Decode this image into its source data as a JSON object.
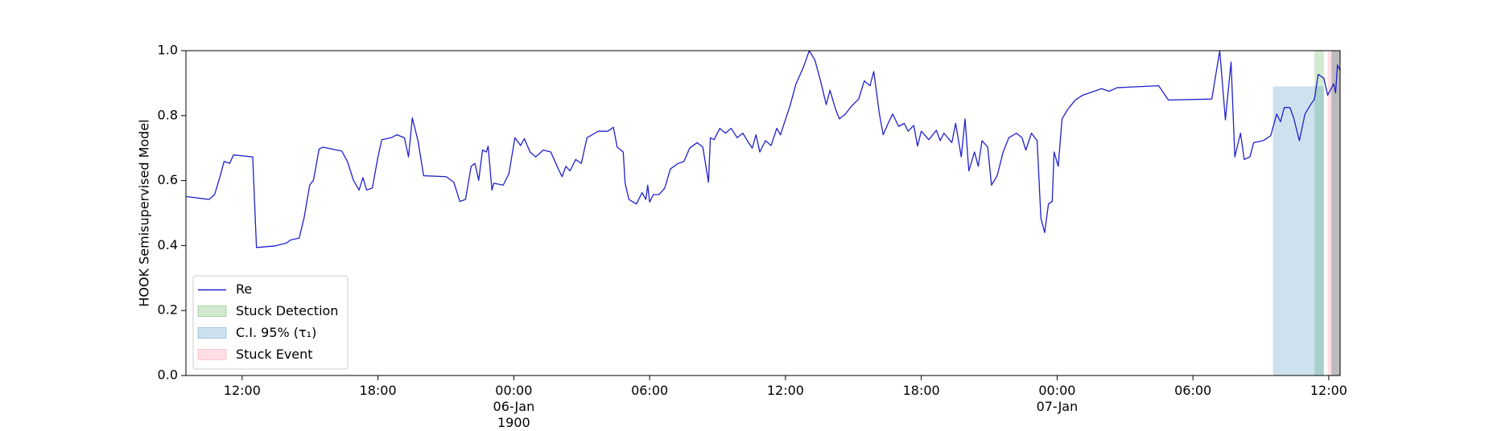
{
  "chart_data": {
    "type": "line",
    "y_label": "HOOK Semisupervised Model",
    "xlim": [
      "1900-01-05 09:31",
      "1900-01-07 12:30"
    ],
    "xticks": [
      {
        "value": "1900-01-05 12:00",
        "label": "12:00"
      },
      {
        "value": "1900-01-05 18:00",
        "label": "18:00"
      },
      {
        "value": "1900-01-06 00:00",
        "label": "00:00\n06-Jan\n1900"
      },
      {
        "value": "1900-01-06 06:00",
        "label": "06:00"
      },
      {
        "value": "1900-01-06 12:00",
        "label": "12:00"
      },
      {
        "value": "1900-01-06 18:00",
        "label": "18:00"
      },
      {
        "value": "1900-01-07 00:00",
        "label": "00:00\n07-Jan"
      },
      {
        "value": "1900-01-07 06:00",
        "label": "06:00"
      },
      {
        "value": "1900-01-07 12:00",
        "label": "12:00"
      }
    ],
    "ylim": [
      0,
      1
    ],
    "yticks": [
      {
        "value": 0,
        "label": "0.0"
      },
      0.2,
      0.4,
      0.6,
      0.8,
      {
        "value": 1,
        "label": "1.0"
      }
    ],
    "legend": "lower left",
    "series": [
      {
        "name": "Re",
        "color": "#2020cc",
        "x": [
          "1900-01-05 09:31",
          "1900-01-05 10:32",
          "1900-01-05 10:47",
          "1900-01-05 11:02",
          "1900-01-05 11:12",
          "1900-01-05 11:27",
          "1900-01-05 11:37",
          "1900-01-05 12:28",
          "1900-01-05 12:38",
          "1900-01-05 13:28",
          "1900-01-05 13:58",
          "1900-01-05 14:08",
          "1900-01-05 14:31",
          "1900-01-05 14:44",
          "1900-01-05 14:59",
          "1900-01-05 15:09",
          "1900-01-05 15:24",
          "1900-01-05 15:34",
          "1900-01-05 16:24",
          "1900-01-05 16:39",
          "1900-01-05 16:55",
          "1900-01-05 17:10",
          "1900-01-05 17:20",
          "1900-01-05 17:30",
          "1900-01-05 17:45",
          "1900-01-05 18:00",
          "1900-01-05 18:10",
          "1900-01-05 18:35",
          "1900-01-05 18:50",
          "1900-01-05 19:10",
          "1900-01-05 19:21",
          "1900-01-05 19:31",
          "1900-01-05 19:46",
          "1900-01-05 20:01",
          "1900-01-05 21:01",
          "1900-01-05 21:21",
          "1900-01-05 21:37",
          "1900-01-05 21:52",
          "1900-01-05 22:07",
          "1900-01-05 22:17",
          "1900-01-05 22:27",
          "1900-01-05 22:37",
          "1900-01-05 22:47",
          "1900-01-05 22:52",
          "1900-01-05 23:02",
          "1900-01-05 23:07",
          "1900-01-05 23:32",
          "1900-01-05 23:47",
          "1900-01-06 00:03",
          "1900-01-06 00:18",
          "1900-01-06 00:28",
          "1900-01-06 00:43",
          "1900-01-06 00:58",
          "1900-01-06 01:18",
          "1900-01-06 01:38",
          "1900-01-06 01:58",
          "1900-01-06 02:08",
          "1900-01-06 02:18",
          "1900-01-06 02:29",
          "1900-01-06 02:44",
          "1900-01-06 02:59",
          "1900-01-06 03:14",
          "1900-01-06 03:44",
          "1900-01-06 04:09",
          "1900-01-06 04:24",
          "1900-01-06 04:34",
          "1900-01-06 04:50",
          "1900-01-06 04:55",
          "1900-01-06 05:05",
          "1900-01-06 05:25",
          "1900-01-06 05:40",
          "1900-01-06 05:50",
          "1900-01-06 05:55",
          "1900-01-06 06:00",
          "1900-01-06 06:10",
          "1900-01-06 06:25",
          "1900-01-06 06:40",
          "1900-01-06 06:55",
          "1900-01-06 07:16",
          "1900-01-06 07:31",
          "1900-01-06 07:46",
          "1900-01-06 08:06",
          "1900-01-06 08:21",
          "1900-01-06 08:36",
          "1900-01-06 08:41",
          "1900-01-06 08:51",
          "1900-01-06 09:06",
          "1900-01-06 09:21",
          "1900-01-06 09:36",
          "1900-01-06 09:52",
          "1900-01-06 10:07",
          "1900-01-06 10:22",
          "1900-01-06 10:32",
          "1900-01-06 10:42",
          "1900-01-06 10:52",
          "1900-01-06 11:07",
          "1900-01-06 11:22",
          "1900-01-06 11:37",
          "1900-01-06 11:47",
          "1900-01-06 11:58",
          "1900-01-06 12:13",
          "1900-01-06 12:28",
          "1900-01-06 12:48",
          "1900-01-06 13:03",
          "1900-01-06 13:18",
          "1900-01-06 13:33",
          "1900-01-06 13:48",
          "1900-01-06 13:58",
          "1900-01-06 14:13",
          "1900-01-06 14:23",
          "1900-01-06 14:39",
          "1900-01-06 14:54",
          "1900-01-06 15:14",
          "1900-01-06 15:29",
          "1900-01-06 15:44",
          "1900-01-06 15:54",
          "1900-01-06 16:09",
          "1900-01-06 16:19",
          "1900-01-06 16:34",
          "1900-01-06 16:44",
          "1900-01-06 17:00",
          "1900-01-06 17:15",
          "1900-01-06 17:25",
          "1900-01-06 17:40",
          "1900-01-06 17:50",
          "1900-01-06 18:00",
          "1900-01-06 18:20",
          "1900-01-06 18:40",
          "1900-01-06 18:50",
          "1900-01-06 19:00",
          "1900-01-06 19:21",
          "1900-01-06 19:31",
          "1900-01-06 19:46",
          "1900-01-06 19:56",
          "1900-01-06 20:06",
          "1900-01-06 20:21",
          "1900-01-06 20:31",
          "1900-01-06 20:41",
          "1900-01-06 20:56",
          "1900-01-06 21:06",
          "1900-01-06 21:21",
          "1900-01-06 21:37",
          "1900-01-06 21:52",
          "1900-01-06 22:12",
          "1900-01-06 22:27",
          "1900-01-06 22:37",
          "1900-01-06 22:52",
          "1900-01-06 23:07",
          "1900-01-06 23:17",
          "1900-01-06 23:27",
          "1900-01-06 23:37",
          "1900-01-06 23:47",
          "1900-01-06 23:52",
          "1900-01-07 00:03",
          "1900-01-07 00:13",
          "1900-01-07 00:28",
          "1900-01-07 00:48",
          "1900-01-07 01:08",
          "1900-01-07 01:58",
          "1900-01-07 02:18",
          "1900-01-07 02:39",
          "1900-01-07 04:29",
          "1900-01-07 04:55",
          "1900-01-07 06:50",
          "1900-01-07 07:11",
          "1900-01-07 07:26",
          "1900-01-07 07:41",
          "1900-01-07 07:51",
          "1900-01-07 08:06",
          "1900-01-07 08:16",
          "1900-01-07 08:31",
          "1900-01-07 08:41",
          "1900-01-07 09:06",
          "1900-01-07 09:26",
          "1900-01-07 09:42",
          "1900-01-07 09:52",
          "1900-01-07 10:02",
          "1900-01-07 10:17",
          "1900-01-07 10:27",
          "1900-01-07 10:42",
          "1900-01-07 10:57",
          "1900-01-07 11:12",
          "1900-01-07 11:22",
          "1900-01-07 11:32",
          "1900-01-07 11:47",
          "1900-01-07 11:57",
          "1900-01-07 12:13",
          "1900-01-07 12:18",
          "1900-01-07 12:23",
          "1900-01-07 12:30"
        ],
        "values": [
          0.551,
          0.542,
          0.557,
          0.615,
          0.659,
          0.653,
          0.679,
          0.673,
          0.394,
          0.399,
          0.408,
          0.417,
          0.423,
          0.484,
          0.586,
          0.601,
          0.697,
          0.703,
          0.691,
          0.659,
          0.601,
          0.571,
          0.609,
          0.571,
          0.577,
          0.673,
          0.726,
          0.732,
          0.741,
          0.732,
          0.673,
          0.793,
          0.723,
          0.615,
          0.612,
          0.595,
          0.536,
          0.542,
          0.644,
          0.653,
          0.601,
          0.694,
          0.688,
          0.706,
          0.571,
          0.592,
          0.586,
          0.621,
          0.732,
          0.708,
          0.729,
          0.688,
          0.673,
          0.694,
          0.688,
          0.636,
          0.612,
          0.644,
          0.63,
          0.665,
          0.653,
          0.732,
          0.752,
          0.752,
          0.764,
          0.703,
          0.688,
          0.592,
          0.542,
          0.528,
          0.563,
          0.542,
          0.586,
          0.534,
          0.557,
          0.557,
          0.577,
          0.636,
          0.653,
          0.659,
          0.7,
          0.717,
          0.703,
          0.595,
          0.732,
          0.726,
          0.761,
          0.746,
          0.761,
          0.732,
          0.746,
          0.717,
          0.7,
          0.741,
          0.688,
          0.723,
          0.708,
          0.761,
          0.741,
          0.781,
          0.834,
          0.898,
          0.95,
          1.0,
          0.971,
          0.907,
          0.834,
          0.878,
          0.819,
          0.79,
          0.805,
          0.828,
          0.851,
          0.907,
          0.892,
          0.936,
          0.805,
          0.741,
          0.781,
          0.805,
          0.767,
          0.776,
          0.752,
          0.77,
          0.706,
          0.752,
          0.726,
          0.755,
          0.723,
          0.746,
          0.717,
          0.776,
          0.673,
          0.79,
          0.63,
          0.688,
          0.644,
          0.723,
          0.703,
          0.586,
          0.615,
          0.688,
          0.732,
          0.746,
          0.732,
          0.694,
          0.746,
          0.723,
          0.484,
          0.44,
          0.528,
          0.536,
          0.688,
          0.644,
          0.79,
          0.819,
          0.848,
          0.863,
          0.883,
          0.875,
          0.886,
          0.892,
          0.848,
          0.851,
          1.0,
          0.787,
          0.965,
          0.673,
          0.746,
          0.665,
          0.673,
          0.717,
          0.723,
          0.738,
          0.805,
          0.781,
          0.825,
          0.825,
          0.793,
          0.723,
          0.805,
          0.834,
          0.851,
          0.927,
          0.915,
          0.863,
          0.898,
          0.87,
          0.956,
          0.939
        ]
      }
    ],
    "bands": [
      {
        "name": "Stuck Detection",
        "color": "#2ca02c",
        "spans": [
          {
            "start": "1900-01-07 11:22",
            "end": "1900-01-07 11:47",
            "top": 1
          },
          {
            "start": "1900-01-07 12:07",
            "end": "1900-01-07 12:30",
            "top": 1
          }
        ]
      },
      {
        "name": "C.I. 95% (τ₁)",
        "color": "#1f77b4",
        "spans": [
          {
            "start": "1900-01-07 09:32",
            "end": "1900-01-07 11:47",
            "top": 0.89
          },
          {
            "start": "1900-01-07 12:07",
            "end": "1900-01-07 12:30",
            "top": 1
          }
        ]
      },
      {
        "name": "Stuck Event",
        "color": "#ff6f88",
        "spans": [
          {
            "start": "1900-01-07 11:57",
            "end": "1900-01-07 12:30",
            "top": 1
          }
        ]
      }
    ]
  }
}
